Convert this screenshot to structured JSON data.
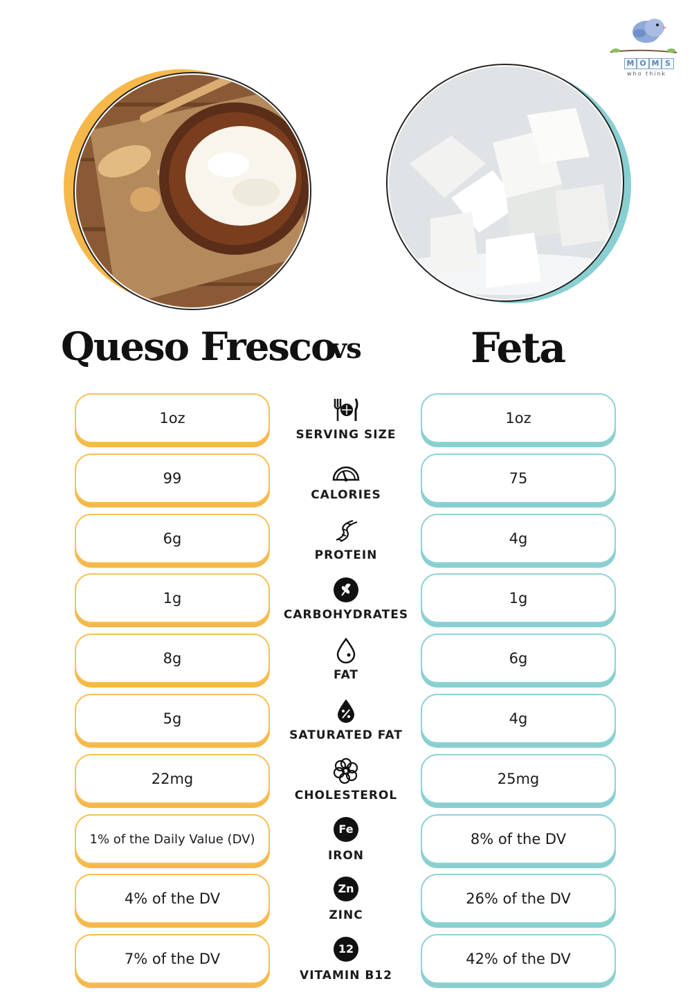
{
  "logo": {
    "blocks": [
      "M",
      "O",
      "M",
      "S"
    ],
    "tagline": "who think"
  },
  "titles": {
    "left": "Queso Fresco",
    "vs": "vs",
    "right": "Feta"
  },
  "colors": {
    "left_accent": "#f6b84a",
    "right_accent": "#89cfd2"
  },
  "rows": [
    {
      "label": "SERVING SIZE",
      "icon": "fork-plate-knife-icon",
      "left": "1oz",
      "right": "1oz"
    },
    {
      "label": "CALORIES",
      "icon": "gauge-icon",
      "left": "99",
      "right": "75"
    },
    {
      "label": "PROTEIN",
      "icon": "protein-helix-icon",
      "left": "6g",
      "right": "4g"
    },
    {
      "label": "CARBOHYDRATES",
      "icon": "wheat-icon",
      "left": "1g",
      "right": "1g"
    },
    {
      "label": "FAT",
      "icon": "drop-icon",
      "left": "8g",
      "right": "6g"
    },
    {
      "label": "SATURATED FAT",
      "icon": "drop-percent-icon",
      "left": "5g",
      "right": "4g"
    },
    {
      "label": "CHOLESTEROL",
      "icon": "cholesterol-icon",
      "left": "22mg",
      "right": "25mg"
    },
    {
      "label": "IRON",
      "icon": "iron-icon",
      "symbol": "Fe",
      "left": "1% of the Daily Value (DV)",
      "right": "8% of the DV"
    },
    {
      "label": "ZINC",
      "icon": "zinc-icon",
      "symbol": "Zn",
      "left": "4% of the DV",
      "right": "26% of the DV"
    },
    {
      "label": "VITAMIN B12",
      "icon": "vitamin-b12-icon",
      "symbol": "12",
      "left": "7% of the DV",
      "right": "42% of the DV"
    }
  ]
}
